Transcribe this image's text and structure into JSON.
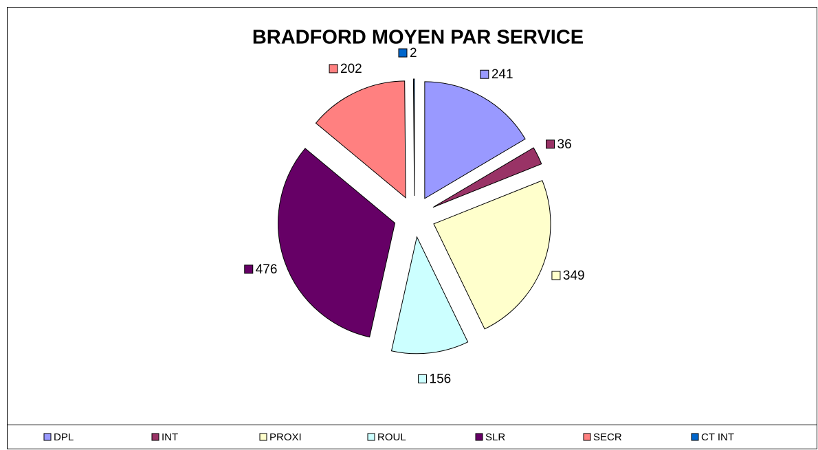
{
  "chart_data": {
    "type": "pie",
    "title": "BRADFORD MOYEN PAR SERVICE",
    "categories": [
      "DPL",
      "INT",
      "PROXI",
      "ROUL",
      "SLR",
      "SECR",
      "CT INT"
    ],
    "values": [
      241,
      36,
      349,
      156,
      476,
      202,
      2
    ],
    "colors": [
      "#9999FF",
      "#993366",
      "#FFFFCC",
      "#CCFFFF",
      "#660066",
      "#FF8080",
      "#0066CC"
    ],
    "legend": "bottom"
  }
}
